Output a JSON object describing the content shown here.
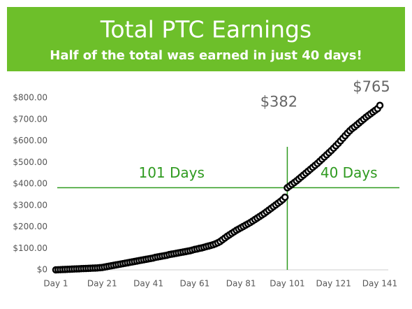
{
  "chart_data": {
    "type": "scatter-line",
    "title": "Total PTC Earnings",
    "subtitle": "Half of the total was earned in just 40 days!",
    "header_color": "#6dbf2a",
    "x": [
      1,
      2,
      3,
      4,
      5,
      6,
      7,
      8,
      9,
      10,
      11,
      12,
      13,
      14,
      15,
      16,
      17,
      18,
      19,
      20,
      21,
      22,
      23,
      24,
      25,
      26,
      27,
      28,
      29,
      30,
      31,
      32,
      33,
      34,
      35,
      36,
      37,
      38,
      39,
      40,
      41,
      42,
      43,
      44,
      45,
      46,
      47,
      48,
      49,
      50,
      51,
      52,
      53,
      54,
      55,
      56,
      57,
      58,
      59,
      60,
      61,
      62,
      63,
      64,
      65,
      66,
      67,
      68,
      69,
      70,
      71,
      72,
      73,
      74,
      75,
      76,
      77,
      78,
      79,
      80,
      81,
      82,
      83,
      84,
      85,
      86,
      87,
      88,
      89,
      90,
      91,
      92,
      93,
      94,
      95,
      96,
      97,
      98,
      99,
      100,
      101,
      102,
      103,
      104,
      105,
      106,
      107,
      108,
      109,
      110,
      111,
      112,
      113,
      114,
      115,
      116,
      117,
      118,
      119,
      120,
      121,
      122,
      123,
      124,
      125,
      126,
      127,
      128,
      129,
      130,
      131,
      132,
      133,
      134,
      135,
      136,
      137,
      138,
      139,
      140,
      141
    ],
    "values": [
      0,
      0.5,
      1,
      1.5,
      2,
      2.5,
      3,
      3.5,
      4,
      4.5,
      5,
      5.5,
      6,
      6.5,
      7,
      7.5,
      8,
      8.5,
      9,
      10,
      11,
      13,
      15,
      17,
      19,
      21,
      23,
      25,
      27,
      29,
      31,
      33,
      35,
      37,
      39,
      41,
      43,
      45,
      47,
      49,
      51,
      53,
      55,
      58,
      60,
      62,
      64,
      66,
      68,
      71,
      73,
      75,
      77,
      79,
      81,
      83,
      85,
      87,
      89,
      92,
      95,
      97,
      100,
      102,
      105,
      108,
      111,
      114,
      117,
      121,
      126,
      132,
      140,
      148,
      156,
      163,
      170,
      177,
      184,
      190,
      196,
      202,
      208,
      214,
      220,
      227,
      234,
      241,
      248,
      255,
      262,
      270,
      278,
      286,
      294,
      302,
      310,
      318,
      327,
      338,
      382,
      390,
      398,
      406,
      414,
      423,
      432,
      441,
      450,
      459,
      468,
      477,
      486,
      495,
      505,
      515,
      525,
      535,
      545,
      555,
      566,
      577,
      588,
      600,
      612,
      624,
      636,
      647,
      657,
      665,
      674,
      683,
      692,
      701,
      710,
      718,
      726,
      734,
      742,
      750,
      765
    ],
    "value_labels": [
      null,
      null,
      null,
      null,
      null,
      null,
      null,
      null,
      null,
      null,
      null,
      null,
      null,
      null,
      null,
      null,
      null,
      null,
      null,
      null,
      null,
      null,
      null,
      null,
      null,
      null,
      null,
      null,
      null,
      null,
      null,
      null,
      null,
      null,
      null,
      null,
      null,
      null,
      null,
      null,
      null,
      null,
      null,
      null,
      null,
      null,
      null,
      null,
      null,
      null,
      null,
      null,
      null,
      null,
      null,
      null,
      null,
      null,
      null,
      null,
      null,
      null,
      null,
      null,
      null,
      null,
      null,
      null,
      null,
      null,
      null,
      null,
      null,
      null,
      null,
      null,
      null,
      null,
      null,
      null,
      null,
      null,
      null,
      null,
      null,
      null,
      null,
      null,
      null,
      null,
      null,
      null,
      null,
      null,
      null,
      null,
      null,
      null,
      null,
      null,
      "$382",
      null,
      null,
      null,
      null,
      null,
      null,
      null,
      null,
      null,
      null,
      null,
      null,
      null,
      null,
      null,
      null,
      null,
      null,
      null,
      null,
      null,
      null,
      null,
      null,
      null,
      null,
      null,
      null,
      null,
      null,
      null,
      null,
      null,
      null,
      null,
      null,
      null,
      null,
      null,
      "$765"
    ],
    "marker_color": "#000000",
    "xlim": [
      1,
      141
    ],
    "xticks": [
      {
        "value": 1,
        "label": "Day 1"
      },
      {
        "value": 21,
        "label": "Day 21"
      },
      {
        "value": 41,
        "label": "Day 41"
      },
      {
        "value": 61,
        "label": "Day 61"
      },
      {
        "value": 81,
        "label": "Day 81"
      },
      {
        "value": 101,
        "label": "Day 101"
      },
      {
        "value": 121,
        "label": "Day 121"
      },
      {
        "value": 141,
        "label": "Day 141"
      }
    ],
    "ylim": [
      0,
      800
    ],
    "yticks": [
      {
        "value": 0,
        "label": "$0"
      },
      {
        "value": 100,
        "label": "$100.00"
      },
      {
        "value": 200,
        "label": "$200.00"
      },
      {
        "value": 300,
        "label": "$300.00"
      },
      {
        "value": 400,
        "label": "$400.00"
      },
      {
        "value": 500,
        "label": "$500.00"
      },
      {
        "value": 600,
        "label": "$600.00"
      },
      {
        "value": 700,
        "label": "$700.00"
      },
      {
        "value": 800,
        "label": "$800.00"
      }
    ],
    "reference": {
      "x": 101,
      "y": 382,
      "color": "#2e9a1f"
    },
    "region_labels": [
      "101 Days",
      "40 Days"
    ]
  }
}
